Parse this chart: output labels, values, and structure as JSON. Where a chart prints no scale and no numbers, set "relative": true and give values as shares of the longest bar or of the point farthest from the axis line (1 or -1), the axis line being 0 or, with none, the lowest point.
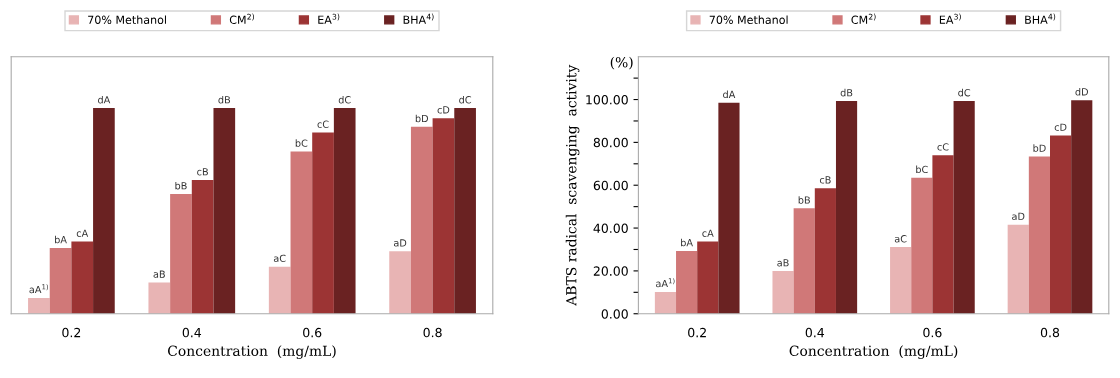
{
  "chart_data": [
    {
      "type": "bar",
      "relative": true,
      "xlabel": "Concentration  (mg/mL)",
      "categories": [
        "0.2",
        "0.4",
        "0.6",
        "0.8"
      ],
      "legend": "top",
      "series": [
        {
          "name": "70% Methanol",
          "color": "#e8b4b4",
          "values": [
            0.077,
            0.152,
            0.229,
            0.304
          ]
        },
        {
          "name": "CM$^{2)}$",
          "color": "#d07878",
          "values": [
            0.32,
            0.582,
            0.789,
            0.909
          ]
        },
        {
          "name": "EA$^{3)}$",
          "color": "#9c3434",
          "values": [
            0.351,
            0.65,
            0.881,
            0.951
          ]
        },
        {
          "name": "BHA$^{4)}$",
          "color": "#6a2222",
          "values": [
            1,
            1,
            1,
            1
          ]
        }
      ],
      "annotations": [
        {
          "text": "aA$^{1)}$",
          "x": "0.2",
          "y": 0.077
        },
        {
          "text": "aB",
          "x": "0.4",
          "y": 0.152
        },
        {
          "text": "aC",
          "x": "0.6",
          "y": 0.229
        },
        {
          "text": "aD",
          "x": "0.8",
          "y": 0.304
        },
        {
          "text": "bA",
          "x": "0.2",
          "y": 0.32
        },
        {
          "text": "bB",
          "x": "0.4",
          "y": 0.582
        },
        {
          "text": "bC",
          "x": "0.6",
          "y": 0.789
        },
        {
          "text": "bD",
          "x": "0.8",
          "y": 0.909
        },
        {
          "text": "cA",
          "x": "0.2",
          "y": 0.351
        },
        {
          "text": "cB",
          "x": "0.4",
          "y": 0.65
        },
        {
          "text": "cC",
          "x": "0.6",
          "y": 0.881
        },
        {
          "text": "cD",
          "x": "0.8",
          "y": 0.951
        },
        "dA",
        "dB",
        "dC",
        "dC"
      ]
    },
    {
      "type": "bar",
      "xlabel": "Concentration  (mg/mL)",
      "ylabel": "ABTS radical  scavenging  activity",
      "categories": [
        "0.2",
        "0.4",
        "0.6",
        "0.8"
      ],
      "legend": "top",
      "ylim": [
        0,
        120
      ],
      "yticks": [
        {
          "value": 0,
          "label": "0.00"
        },
        {
          "value": 10,
          "label": null
        },
        {
          "value": 20,
          "label": "20.00"
        },
        {
          "value": 30,
          "label": null
        },
        {
          "value": 40,
          "label": "40.00"
        },
        {
          "value": 50,
          "label": null
        },
        {
          "value": 60,
          "label": "60.00"
        },
        {
          "value": 70,
          "label": null
        },
        {
          "value": 80,
          "label": "80.00"
        },
        {
          "value": 90,
          "label": null
        },
        {
          "value": 100,
          "label": "100.00"
        },
        {
          "value": 110,
          "label": null
        }
      ],
      "series": [
        {
          "name": "70% Methanol",
          "color": "#e8b4b4",
          "values": [
            10.2,
            19.9,
            31.1,
            41.6
          ]
        },
        {
          "name": "CM$^{2)}$",
          "color": "#d07878",
          "values": [
            29.3,
            49.2,
            63.5,
            73.4
          ]
        },
        {
          "name": "EA$^{3)}$",
          "color": "#9c3434",
          "values": [
            33.7,
            58.6,
            74.0,
            83.2
          ]
        },
        {
          "name": "BHA$^{4)}$",
          "color": "#6a2222",
          "values": [
            98.5,
            99.3,
            99.3,
            99.7
          ]
        }
      ],
      "annotations": [
        {
          "text": "aA$^{1)}$",
          "x": "0.2",
          "y": 10.2
        },
        {
          "text": "aB",
          "x": "0.4",
          "y": 19.9
        },
        {
          "text": "aC",
          "x": "0.6",
          "y": 31.1
        },
        {
          "text": "aD",
          "x": "0.8",
          "y": 41.6
        },
        {
          "text": "bA",
          "x": "0.2",
          "y": 29.3
        },
        {
          "text": "bB",
          "x": "0.4",
          "y": 49.2
        },
        {
          "text": "bC",
          "x": "0.6",
          "y": 63.5
        },
        {
          "text": "bD",
          "x": "0.8",
          "y": 73.4
        },
        {
          "text": "cA",
          "x": "0.2",
          "y": 33.7
        },
        {
          "text": "cB",
          "x": "0.4",
          "y": 58.6
        },
        {
          "text": "cC",
          "x": "0.6",
          "y": 74.0
        },
        {
          "text": "cD",
          "x": "0.8",
          "y": 83.2
        },
        "dA",
        "dB",
        "dC",
        "dD",
        "(%)"
      ]
    }
  ]
}
